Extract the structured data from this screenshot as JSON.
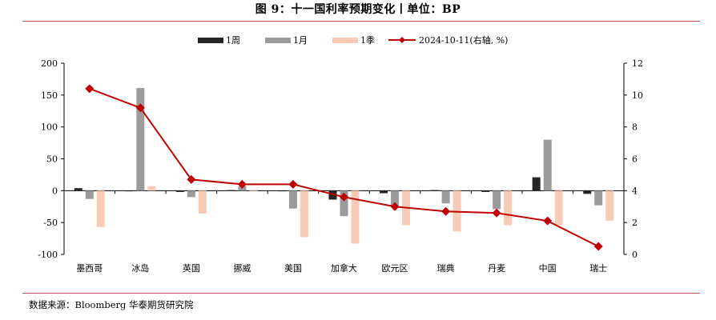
{
  "title": "图 9：十一国利率预期变化丨单位：BP",
  "source": "数据来源：Bloomberg  华泰期货研究院",
  "colors": {
    "w1": "#262626",
    "m1": "#9b9b9b",
    "q1": "#f8cbb4",
    "line": "#c00000",
    "rule": "#c0504d"
  },
  "chart_data": {
    "type": "bar",
    "categories": [
      "墨西哥",
      "冰岛",
      "英国",
      "挪威",
      "美国",
      "加拿大",
      "欧元区",
      "瑞典",
      "丹麦",
      "中国",
      "瑞士"
    ],
    "series": [
      {
        "name": "1周",
        "values": [
          4,
          0,
          -2,
          1,
          0,
          -14,
          -4,
          1,
          -2,
          21,
          -5
        ]
      },
      {
        "name": "1月",
        "values": [
          -13,
          161,
          -10,
          7,
          -28,
          -40,
          -26,
          -20,
          -29,
          80,
          -23
        ]
      },
      {
        "name": "1季",
        "values": [
          -57,
          7,
          -36,
          0,
          -73,
          -83,
          -54,
          -64,
          -54,
          -54,
          -47
        ]
      }
    ],
    "line_series": {
      "name": "2024-10-11(右轴, %)",
      "values": [
        10.4,
        9.2,
        4.7,
        4.4,
        4.4,
        3.6,
        3.0,
        2.7,
        2.6,
        2.1,
        0.5
      ]
    },
    "y_left": {
      "min": -100,
      "max": 200,
      "ticks": [
        -100,
        -50,
        0,
        50,
        100,
        150,
        200
      ]
    },
    "y_right": {
      "min": 0,
      "max": 12,
      "ticks": [
        0,
        2,
        4,
        6,
        8,
        10,
        12
      ]
    },
    "legend_position": "top-center",
    "grid": false
  }
}
